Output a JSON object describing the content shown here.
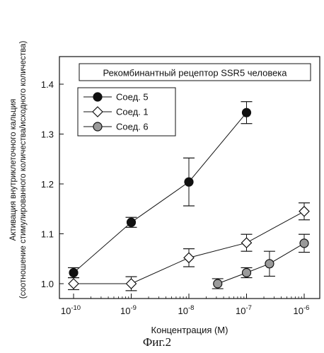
{
  "figure_caption": "Фиг.2",
  "chart_data": {
    "type": "line",
    "title": "Рекомбинантный рецептор SSR5 человека",
    "xlabel": "Концентрация (М)",
    "ylabel_line1": "Активация внутриклеточного кальция",
    "ylabel_line2": "(соотношение стимулированного количества/исходного количества)",
    "xscale": "log",
    "xlim": [
      1e-10,
      1e-06
    ],
    "ylim": [
      0.97,
      1.42
    ],
    "x_tick_labels": [
      {
        "x": 1e-10,
        "base": "10",
        "exp": "-10"
      },
      {
        "x": 1e-09,
        "base": "10",
        "exp": "-9"
      },
      {
        "x": 1e-08,
        "base": "10",
        "exp": "-8"
      },
      {
        "x": 1e-07,
        "base": "10",
        "exp": "-7"
      },
      {
        "x": 1e-06,
        "base": "10",
        "exp": "-6"
      }
    ],
    "y_ticks": [
      1.0,
      1.1,
      1.2,
      1.3,
      1.4
    ],
    "y_tick_labels": [
      "1.0",
      "1.1",
      "1.2",
      "1.3",
      "1.4"
    ],
    "legend_position": "top-left",
    "series": [
      {
        "name": "Соед. 5",
        "marker": "circle",
        "color": "#111111",
        "x": [
          1e-10,
          1e-09,
          1e-08,
          1e-07
        ],
        "y": [
          1.022,
          1.123,
          1.204,
          1.343
        ],
        "err": [
          0.01,
          0.01,
          0.048,
          0.022
        ]
      },
      {
        "name": "Соед. 1",
        "marker": "diamond",
        "color": "#ffffff",
        "x": [
          1e-10,
          1e-09,
          1e-08,
          1e-07,
          1e-06
        ],
        "y": [
          1.0,
          1.0,
          1.052,
          1.082,
          1.145
        ],
        "err": [
          0.012,
          0.014,
          0.018,
          0.017,
          0.017
        ]
      },
      {
        "name": "Соед. 6",
        "marker": "circle",
        "color": "#9a9a9a",
        "x": [
          3.16e-08,
          1e-07,
          2.5e-07,
          1e-06
        ],
        "y": [
          1.0,
          1.022,
          1.04,
          1.081
        ],
        "err": [
          0.01,
          0.01,
          0.025,
          0.018
        ]
      }
    ]
  }
}
